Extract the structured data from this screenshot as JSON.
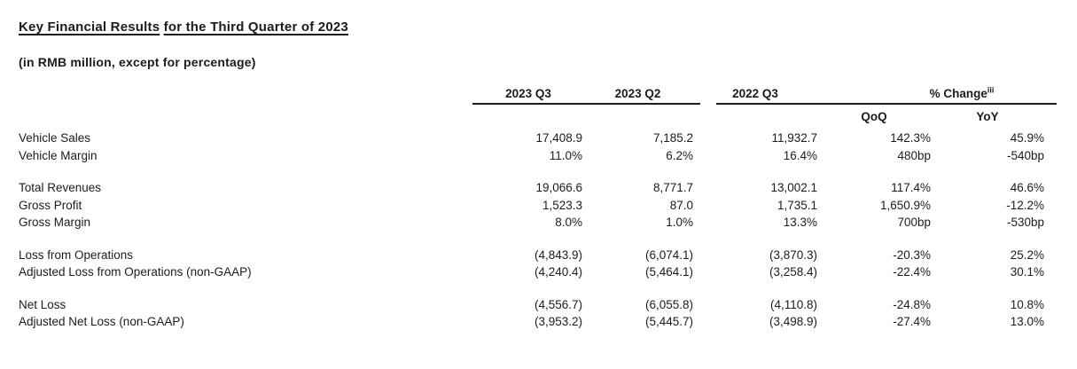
{
  "title": {
    "part1": "Key Financial Results",
    "part2": "for the Third Quarter of 2023"
  },
  "subtitle": "(in RMB million, except for percentage)",
  "colors": {
    "background": "#ffffff",
    "text": "#1c1c1c",
    "rule": "#1c1c1c"
  },
  "table": {
    "headers": {
      "q3_2023": "2023 Q3",
      "q2_2023": "2023 Q2",
      "q3_2022": "2022 Q3",
      "pct_change": "% Change",
      "pct_change_superscript": "iii",
      "sub_qoq": "QoQ",
      "sub_yoy": "YoY"
    },
    "groups": [
      {
        "rows": [
          {
            "label": "Vehicle Sales",
            "q3_2023": "17,408.9",
            "q2_2023": "7,185.2",
            "q3_2022": "11,932.7",
            "qoq": "142.3%",
            "yoy": "45.9%"
          },
          {
            "label": "Vehicle Margin",
            "q3_2023": "11.0%",
            "q2_2023": "6.2%",
            "q3_2022": "16.4%",
            "qoq": "480bp",
            "yoy": "-540bp"
          }
        ]
      },
      {
        "rows": [
          {
            "label": "Total Revenues",
            "q3_2023": "19,066.6",
            "q2_2023": "8,771.7",
            "q3_2022": "13,002.1",
            "qoq": "117.4%",
            "yoy": "46.6%"
          },
          {
            "label": "Gross Profit",
            "q3_2023": "1,523.3",
            "q2_2023": "87.0",
            "q3_2022": "1,735.1",
            "qoq": "1,650.9%",
            "yoy": "-12.2%"
          },
          {
            "label": "Gross Margin",
            "q3_2023": "8.0%",
            "q2_2023": "1.0%",
            "q3_2022": "13.3%",
            "qoq": "700bp",
            "yoy": "-530bp"
          }
        ]
      },
      {
        "rows": [
          {
            "label": "Loss from Operations",
            "q3_2023": "(4,843.9)",
            "q2_2023": "(6,074.1)",
            "q3_2022": "(3,870.3)",
            "qoq": "-20.3%",
            "yoy": "25.2%"
          },
          {
            "label": "Adjusted Loss from Operations (non-GAAP)",
            "q3_2023": "(4,240.4)",
            "q2_2023": "(5,464.1)",
            "q3_2022": "(3,258.4)",
            "qoq": "-22.4%",
            "yoy": "30.1%"
          }
        ]
      },
      {
        "rows": [
          {
            "label": "Net Loss",
            "q3_2023": "(4,556.7)",
            "q2_2023": "(6,055.8)",
            "q3_2022": "(4,110.8)",
            "qoq": "-24.8%",
            "yoy": "10.8%"
          },
          {
            "label": "Adjusted Net Loss (non-GAAP)",
            "q3_2023": "(3,953.2)",
            "q2_2023": "(5,445.7)",
            "q3_2022": "(3,498.9)",
            "qoq": "-27.4%",
            "yoy": "13.0%"
          }
        ]
      }
    ]
  }
}
